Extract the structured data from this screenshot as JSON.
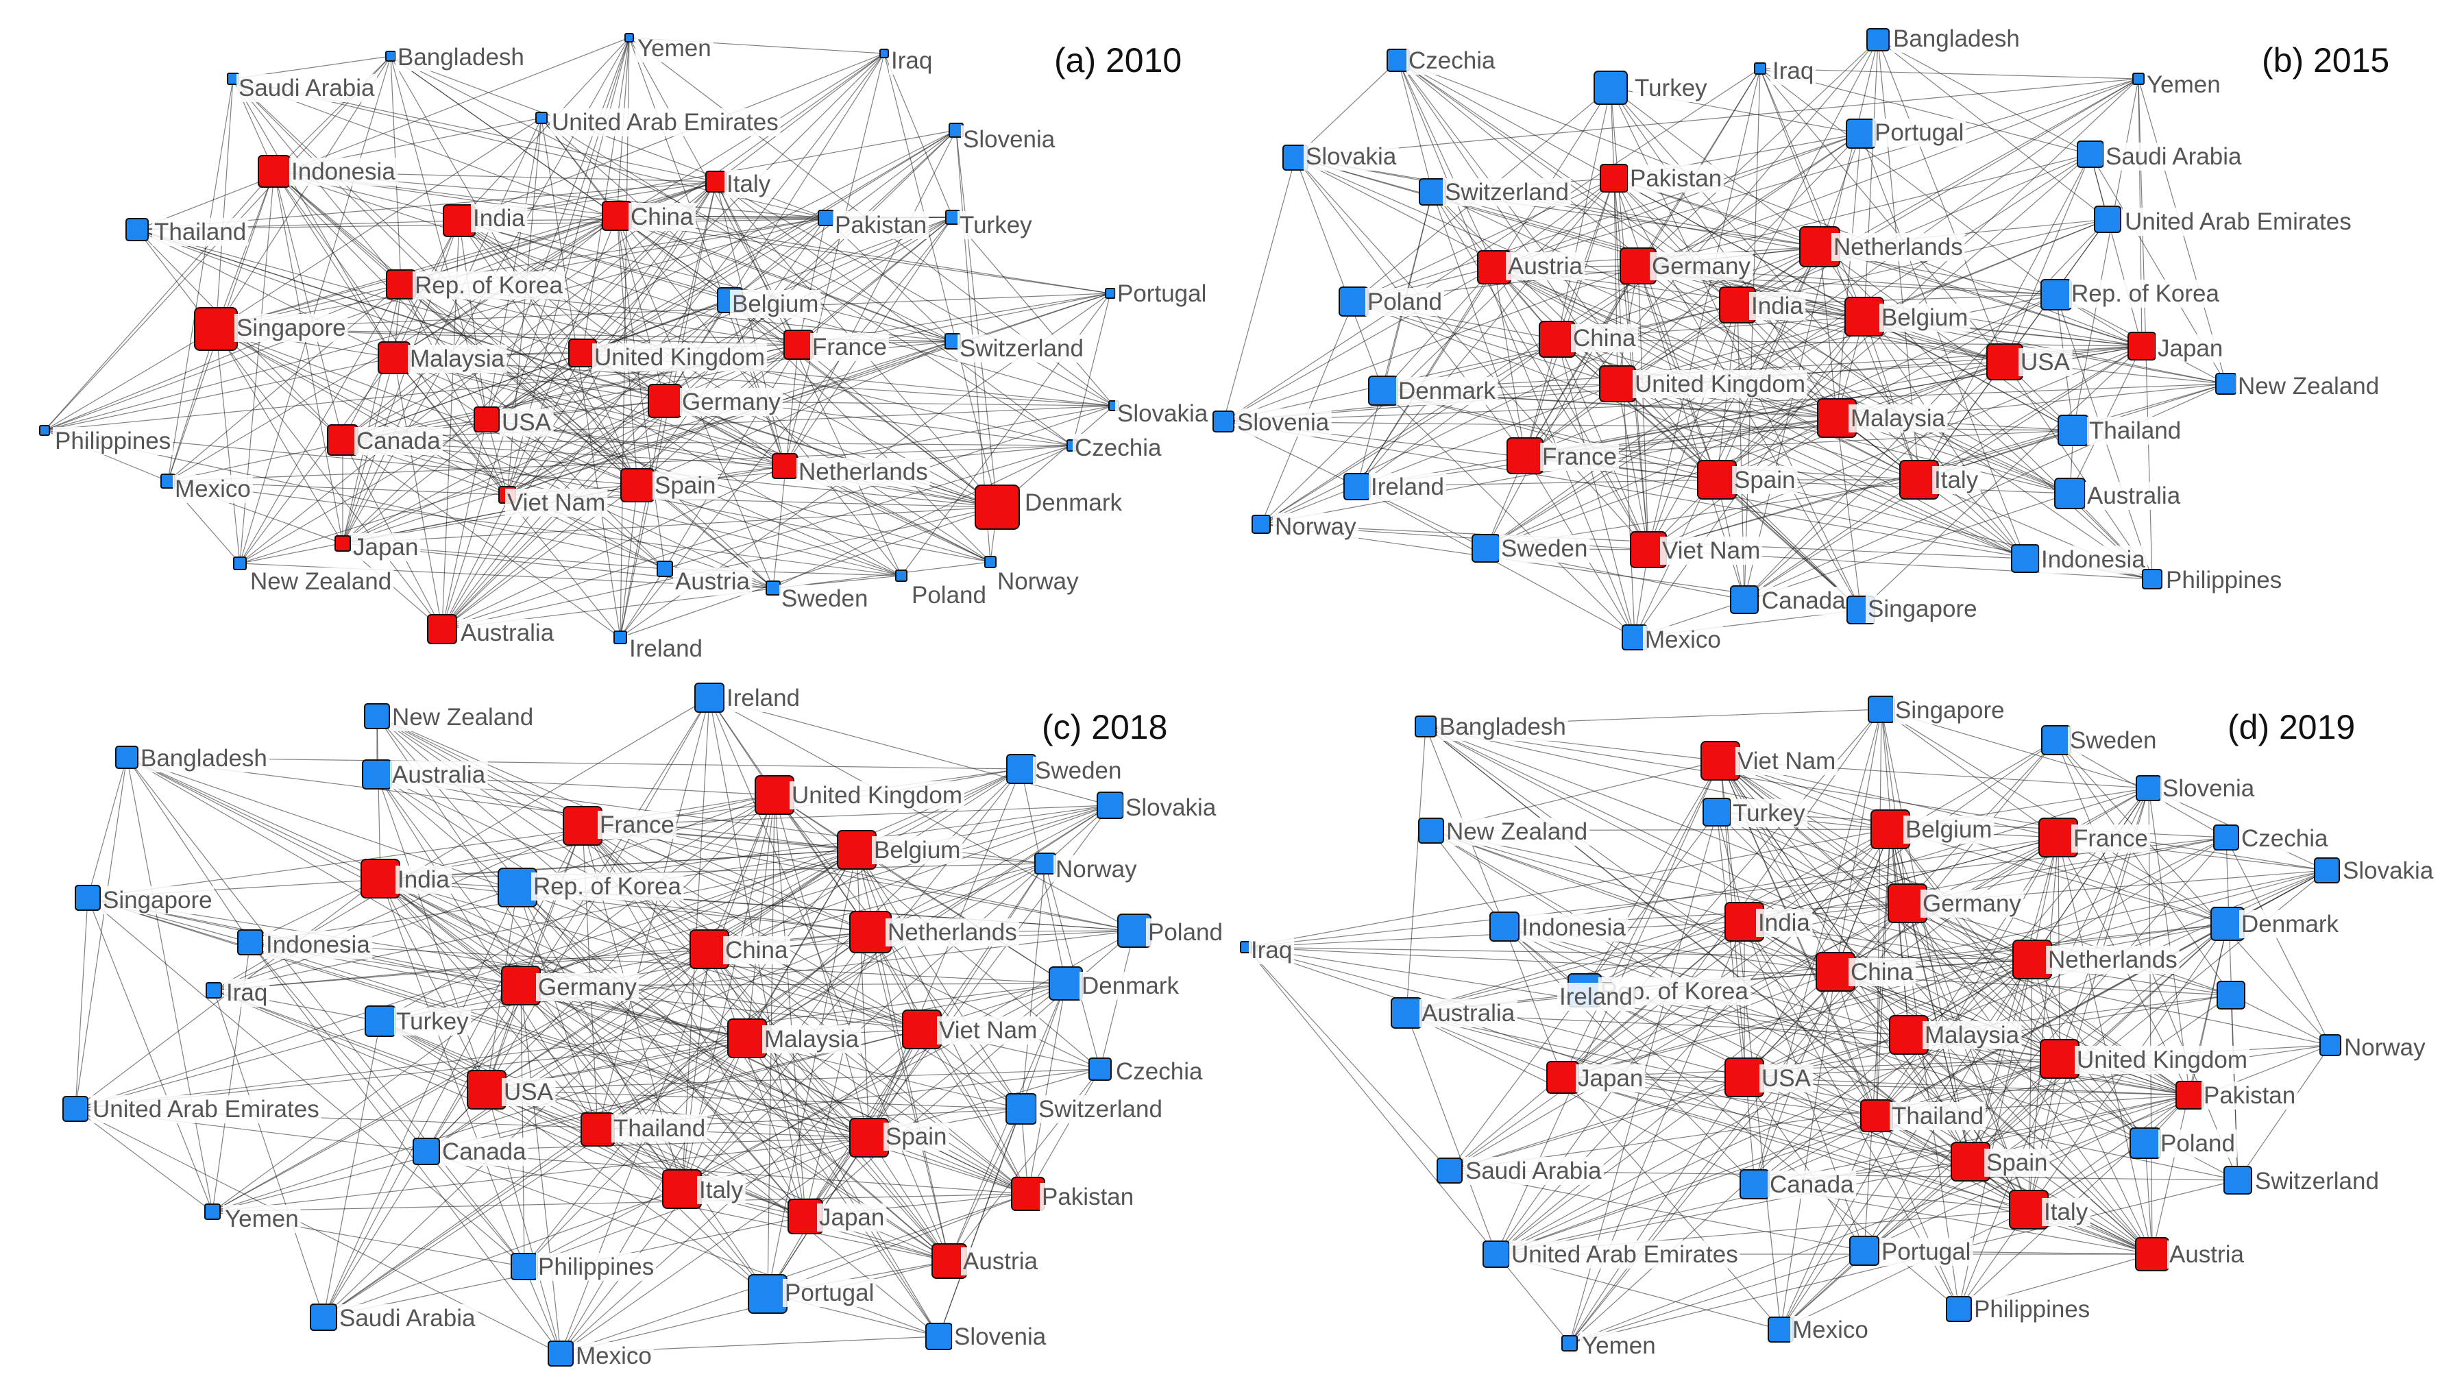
{
  "colors": {
    "group_red": "#f00d0d",
    "group_blue": "#1d86f0",
    "node_outline": "#111111",
    "edge": "#1a1a1a"
  },
  "panels": [
    {
      "title": "(a) 2010",
      "nodes": [
        {
          "label": "Bangladesh",
          "group": "blue"
        },
        {
          "label": "Yemen",
          "group": "blue"
        },
        {
          "label": "Iraq",
          "group": "blue"
        },
        {
          "label": "Saudi Arabia",
          "group": "blue"
        },
        {
          "label": "United Arab Emirates",
          "group": "blue"
        },
        {
          "label": "Slovenia",
          "group": "blue"
        },
        {
          "label": "Indonesia",
          "group": "red"
        },
        {
          "label": "Italy",
          "group": "red"
        },
        {
          "label": "India",
          "group": "red"
        },
        {
          "label": "China",
          "group": "red"
        },
        {
          "label": "Pakistan",
          "group": "blue"
        },
        {
          "label": "Turkey",
          "group": "blue"
        },
        {
          "label": "Thailand",
          "group": "blue"
        },
        {
          "label": "Rep. of Korea",
          "group": "red"
        },
        {
          "label": "Portugal",
          "group": "blue"
        },
        {
          "label": "Belgium",
          "group": "blue"
        },
        {
          "label": "Singapore",
          "group": "red"
        },
        {
          "label": "Malaysia",
          "group": "red"
        },
        {
          "label": "United Kingdom",
          "group": "red"
        },
        {
          "label": "France",
          "group": "red"
        },
        {
          "label": "Switzerland",
          "group": "blue"
        },
        {
          "label": "Germany",
          "group": "red"
        },
        {
          "label": "Slovakia",
          "group": "blue"
        },
        {
          "label": "Philippines",
          "group": "blue"
        },
        {
          "label": "Canada",
          "group": "red"
        },
        {
          "label": "USA",
          "group": "red"
        },
        {
          "label": "Czechia",
          "group": "blue"
        },
        {
          "label": "Mexico",
          "group": "blue"
        },
        {
          "label": "Netherlands",
          "group": "red"
        },
        {
          "label": "Viet Nam",
          "group": "red"
        },
        {
          "label": "Spain",
          "group": "red"
        },
        {
          "label": "Denmark",
          "group": "red"
        },
        {
          "label": "Japan",
          "group": "red"
        },
        {
          "label": "New Zealand",
          "group": "blue"
        },
        {
          "label": "Austria",
          "group": "blue"
        },
        {
          "label": "Norway",
          "group": "blue"
        },
        {
          "label": "Poland",
          "group": "blue"
        },
        {
          "label": "Sweden",
          "group": "blue"
        },
        {
          "label": "Australia",
          "group": "red"
        },
        {
          "label": "Ireland",
          "group": "blue"
        }
      ]
    },
    {
      "title": "(b) 2015",
      "nodes": [
        {
          "label": "Bangladesh",
          "group": "blue"
        },
        {
          "label": "Czechia",
          "group": "blue"
        },
        {
          "label": "Turkey",
          "group": "blue"
        },
        {
          "label": "Iraq",
          "group": "blue"
        },
        {
          "label": "Yemen",
          "group": "blue"
        },
        {
          "label": "Portugal",
          "group": "blue"
        },
        {
          "label": "Slovakia",
          "group": "blue"
        },
        {
          "label": "Saudi Arabia",
          "group": "blue"
        },
        {
          "label": "Pakistan",
          "group": "red"
        },
        {
          "label": "Switzerland",
          "group": "blue"
        },
        {
          "label": "United Arab Emirates",
          "group": "blue"
        },
        {
          "label": "Netherlands",
          "group": "red"
        },
        {
          "label": "Austria",
          "group": "red"
        },
        {
          "label": "Germany",
          "group": "red"
        },
        {
          "label": "Rep. of Korea",
          "group": "blue"
        },
        {
          "label": "Poland",
          "group": "blue"
        },
        {
          "label": "India",
          "group": "red"
        },
        {
          "label": "Belgium",
          "group": "red"
        },
        {
          "label": "China",
          "group": "red"
        },
        {
          "label": "Japan",
          "group": "red"
        },
        {
          "label": "USA",
          "group": "red"
        },
        {
          "label": "Denmark",
          "group": "blue"
        },
        {
          "label": "United Kingdom",
          "group": "red"
        },
        {
          "label": "New Zealand",
          "group": "blue"
        },
        {
          "label": "Slovenia",
          "group": "blue"
        },
        {
          "label": "Malaysia",
          "group": "red"
        },
        {
          "label": "Thailand",
          "group": "blue"
        },
        {
          "label": "France",
          "group": "red"
        },
        {
          "label": "Ireland",
          "group": "blue"
        },
        {
          "label": "Spain",
          "group": "red"
        },
        {
          "label": "Italy",
          "group": "red"
        },
        {
          "label": "Australia",
          "group": "blue"
        },
        {
          "label": "Norway",
          "group": "blue"
        },
        {
          "label": "Sweden",
          "group": "blue"
        },
        {
          "label": "Viet Nam",
          "group": "red"
        },
        {
          "label": "Indonesia",
          "group": "blue"
        },
        {
          "label": "Philippines",
          "group": "blue"
        },
        {
          "label": "Canada",
          "group": "blue"
        },
        {
          "label": "Singapore",
          "group": "blue"
        },
        {
          "label": "Mexico",
          "group": "blue"
        }
      ]
    },
    {
      "title": "(c) 2018",
      "nodes": [
        {
          "label": "Ireland",
          "group": "blue"
        },
        {
          "label": "New Zealand",
          "group": "blue"
        },
        {
          "label": "Bangladesh",
          "group": "blue"
        },
        {
          "label": "Australia",
          "group": "blue"
        },
        {
          "label": "United Kingdom",
          "group": "red"
        },
        {
          "label": "Sweden",
          "group": "blue"
        },
        {
          "label": "France",
          "group": "red"
        },
        {
          "label": "Slovakia",
          "group": "blue"
        },
        {
          "label": "Belgium",
          "group": "red"
        },
        {
          "label": "India",
          "group": "red"
        },
        {
          "label": "Rep. of Korea",
          "group": "blue"
        },
        {
          "label": "Norway",
          "group": "blue"
        },
        {
          "label": "Singapore",
          "group": "blue"
        },
        {
          "label": "Netherlands",
          "group": "red"
        },
        {
          "label": "Poland",
          "group": "blue"
        },
        {
          "label": "Indonesia",
          "group": "blue"
        },
        {
          "label": "China",
          "group": "red"
        },
        {
          "label": "Iraq",
          "group": "blue"
        },
        {
          "label": "Germany",
          "group": "red"
        },
        {
          "label": "Denmark",
          "group": "blue"
        },
        {
          "label": "Turkey",
          "group": "blue"
        },
        {
          "label": "Viet Nam",
          "group": "red"
        },
        {
          "label": "Malaysia",
          "group": "red"
        },
        {
          "label": "Czechia",
          "group": "blue"
        },
        {
          "label": "USA",
          "group": "red"
        },
        {
          "label": "United Arab Emirates",
          "group": "blue"
        },
        {
          "label": "Switzerland",
          "group": "blue"
        },
        {
          "label": "Thailand",
          "group": "red"
        },
        {
          "label": "Spain",
          "group": "red"
        },
        {
          "label": "Canada",
          "group": "blue"
        },
        {
          "label": "Italy",
          "group": "red"
        },
        {
          "label": "Pakistan",
          "group": "red"
        },
        {
          "label": "Yemen",
          "group": "blue"
        },
        {
          "label": "Japan",
          "group": "red"
        },
        {
          "label": "Austria",
          "group": "red"
        },
        {
          "label": "Philippines",
          "group": "blue"
        },
        {
          "label": "Portugal",
          "group": "blue"
        },
        {
          "label": "Saudi Arabia",
          "group": "blue"
        },
        {
          "label": "Slovenia",
          "group": "blue"
        },
        {
          "label": "Mexico",
          "group": "blue"
        }
      ]
    },
    {
      "title": "(d) 2019",
      "nodes": [
        {
          "label": "Singapore",
          "group": "blue"
        },
        {
          "label": "Bangladesh",
          "group": "blue"
        },
        {
          "label": "Sweden",
          "group": "blue"
        },
        {
          "label": "Viet Nam",
          "group": "red"
        },
        {
          "label": "Slovenia",
          "group": "blue"
        },
        {
          "label": "Turkey",
          "group": "blue"
        },
        {
          "label": "Belgium",
          "group": "red"
        },
        {
          "label": "France",
          "group": "red"
        },
        {
          "label": "New Zealand",
          "group": "blue"
        },
        {
          "label": "Czechia",
          "group": "blue"
        },
        {
          "label": "Slovakia",
          "group": "blue"
        },
        {
          "label": "Germany",
          "group": "red"
        },
        {
          "label": "India",
          "group": "red"
        },
        {
          "label": "Indonesia",
          "group": "blue"
        },
        {
          "label": "Denmark",
          "group": "blue"
        },
        {
          "label": "Iraq",
          "group": "blue"
        },
        {
          "label": "Netherlands",
          "group": "red"
        },
        {
          "label": "China",
          "group": "red"
        },
        {
          "label": "Rep. of Korea",
          "group": "blue"
        },
        {
          "label": "Ireland",
          "group": "blue"
        },
        {
          "label": "Australia",
          "group": "blue"
        },
        {
          "label": "Malaysia",
          "group": "red"
        },
        {
          "label": "Norway",
          "group": "blue"
        },
        {
          "label": "United Kingdom",
          "group": "red"
        },
        {
          "label": "Japan",
          "group": "red"
        },
        {
          "label": "USA",
          "group": "red"
        },
        {
          "label": "Pakistan",
          "group": "red"
        },
        {
          "label": "Thailand",
          "group": "red"
        },
        {
          "label": "Poland",
          "group": "blue"
        },
        {
          "label": "Saudi Arabia",
          "group": "blue"
        },
        {
          "label": "Spain",
          "group": "red"
        },
        {
          "label": "Canada",
          "group": "blue"
        },
        {
          "label": "Switzerland",
          "group": "blue"
        },
        {
          "label": "Italy",
          "group": "red"
        },
        {
          "label": "United Arab Emirates",
          "group": "blue"
        },
        {
          "label": "Portugal",
          "group": "blue"
        },
        {
          "label": "Austria",
          "group": "red"
        },
        {
          "label": "Mexico",
          "group": "blue"
        },
        {
          "label": "Philippines",
          "group": "blue"
        },
        {
          "label": "Yemen",
          "group": "blue"
        }
      ]
    }
  ]
}
